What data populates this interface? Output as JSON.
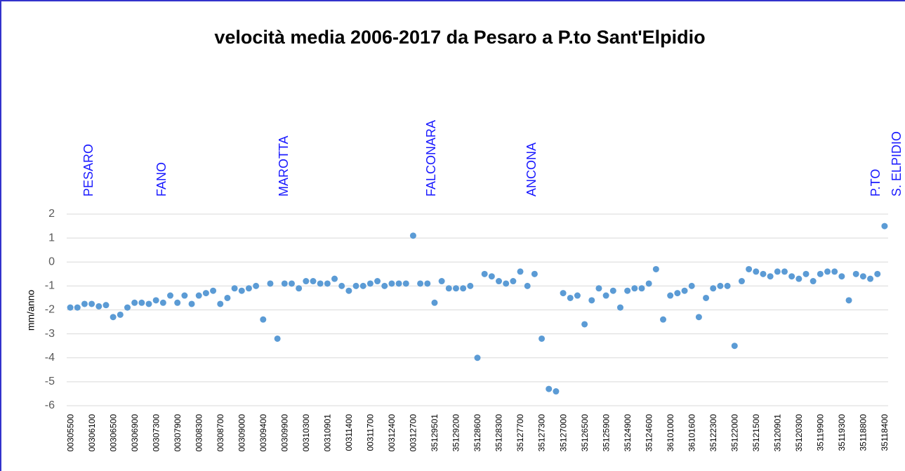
{
  "chart_data": {
    "type": "scatter",
    "title": "velocità media 2006-2017 da Pesaro a P.to Sant'Elpidio",
    "y_label": "mm/anno",
    "annotations": [
      "PESARO",
      "FANO",
      "MAROTTA",
      "FALCONARA",
      "ANCONA",
      "P.TO",
      "S. ELPIDIO"
    ],
    "categories": [
      "00305500",
      null,
      null,
      "00306100",
      null,
      null,
      "00306500",
      null,
      null,
      "00306900",
      null,
      null,
      "00307300",
      null,
      null,
      "00307900",
      null,
      null,
      "00308300",
      null,
      null,
      "00308700",
      null,
      null,
      "00309000",
      null,
      null,
      "00309400",
      null,
      null,
      "00309900",
      null,
      null,
      "00310300",
      null,
      null,
      "00310901",
      null,
      null,
      "00311400",
      null,
      null,
      "00311700",
      null,
      null,
      "00312400",
      null,
      null,
      "00312700",
      null,
      null,
      "35129501",
      null,
      null,
      "35129200",
      null,
      null,
      "35128600",
      null,
      null,
      "35128300",
      null,
      null,
      "35127700",
      null,
      null,
      "35127300",
      null,
      null,
      "35127000",
      null,
      null,
      "35126500",
      null,
      null,
      "35125900",
      null,
      null,
      "35124900",
      null,
      null,
      "35124600",
      null,
      null,
      "36101000",
      null,
      null,
      "36101600",
      null,
      null,
      "35122300",
      null,
      null,
      "35122000",
      null,
      null,
      "35121500",
      null,
      null,
      "35120901",
      null,
      null,
      "35120300",
      null,
      null,
      "35119900",
      null,
      null,
      "35119300",
      null,
      null,
      "35118800",
      null,
      null,
      "35118400"
    ],
    "values": [
      -1.9,
      -1.9,
      -1.75,
      -1.75,
      -1.85,
      -1.8,
      -2.3,
      -2.2,
      -1.9,
      -1.7,
      -1.7,
      -1.75,
      -1.6,
      -1.7,
      -1.4,
      -1.7,
      -1.4,
      -1.75,
      -1.4,
      -1.3,
      -1.2,
      -1.75,
      -1.5,
      -1.1,
      -1.2,
      -1.1,
      -1.0,
      -2.4,
      -0.9,
      -3.2,
      -0.9,
      -0.9,
      -1.1,
      -0.8,
      -0.8,
      -0.9,
      -0.9,
      -0.7,
      -1.0,
      -1.2,
      -1.0,
      -1.0,
      -0.9,
      -0.8,
      -1.0,
      -0.9,
      -0.9,
      -0.9,
      1.1,
      -0.9,
      -0.9,
      -1.7,
      -0.8,
      -1.1,
      -1.1,
      -1.1,
      -1.0,
      -4.0,
      -0.5,
      -0.6,
      -0.8,
      -0.9,
      -0.8,
      -0.4,
      -1.0,
      -0.5,
      -3.2,
      -5.3,
      -5.4,
      -1.3,
      -1.5,
      -1.4,
      -2.6,
      -1.6,
      -1.1,
      -1.4,
      -1.2,
      -1.9,
      -1.2,
      -1.1,
      -1.1,
      -0.9,
      -0.3,
      -2.4,
      -1.4,
      -1.3,
      -1.2,
      -1.0,
      -2.3,
      -1.5,
      -1.1,
      -1.0,
      -1.0,
      -3.5,
      -0.8,
      -0.3,
      -0.4,
      -0.5,
      -0.6,
      -0.4,
      -0.4,
      -0.6,
      -0.7,
      -0.5,
      -0.8,
      -0.5,
      -0.4,
      -0.4,
      -0.6,
      -1.6,
      -0.5,
      -0.6,
      -0.7,
      -0.5,
      1.5
    ],
    "color": "#5b9bd5",
    "ylim": [
      -6,
      2
    ],
    "yticks": [
      -6,
      -5,
      -4,
      -3,
      -2,
      -1,
      0,
      1,
      2
    ],
    "grid": true
  }
}
